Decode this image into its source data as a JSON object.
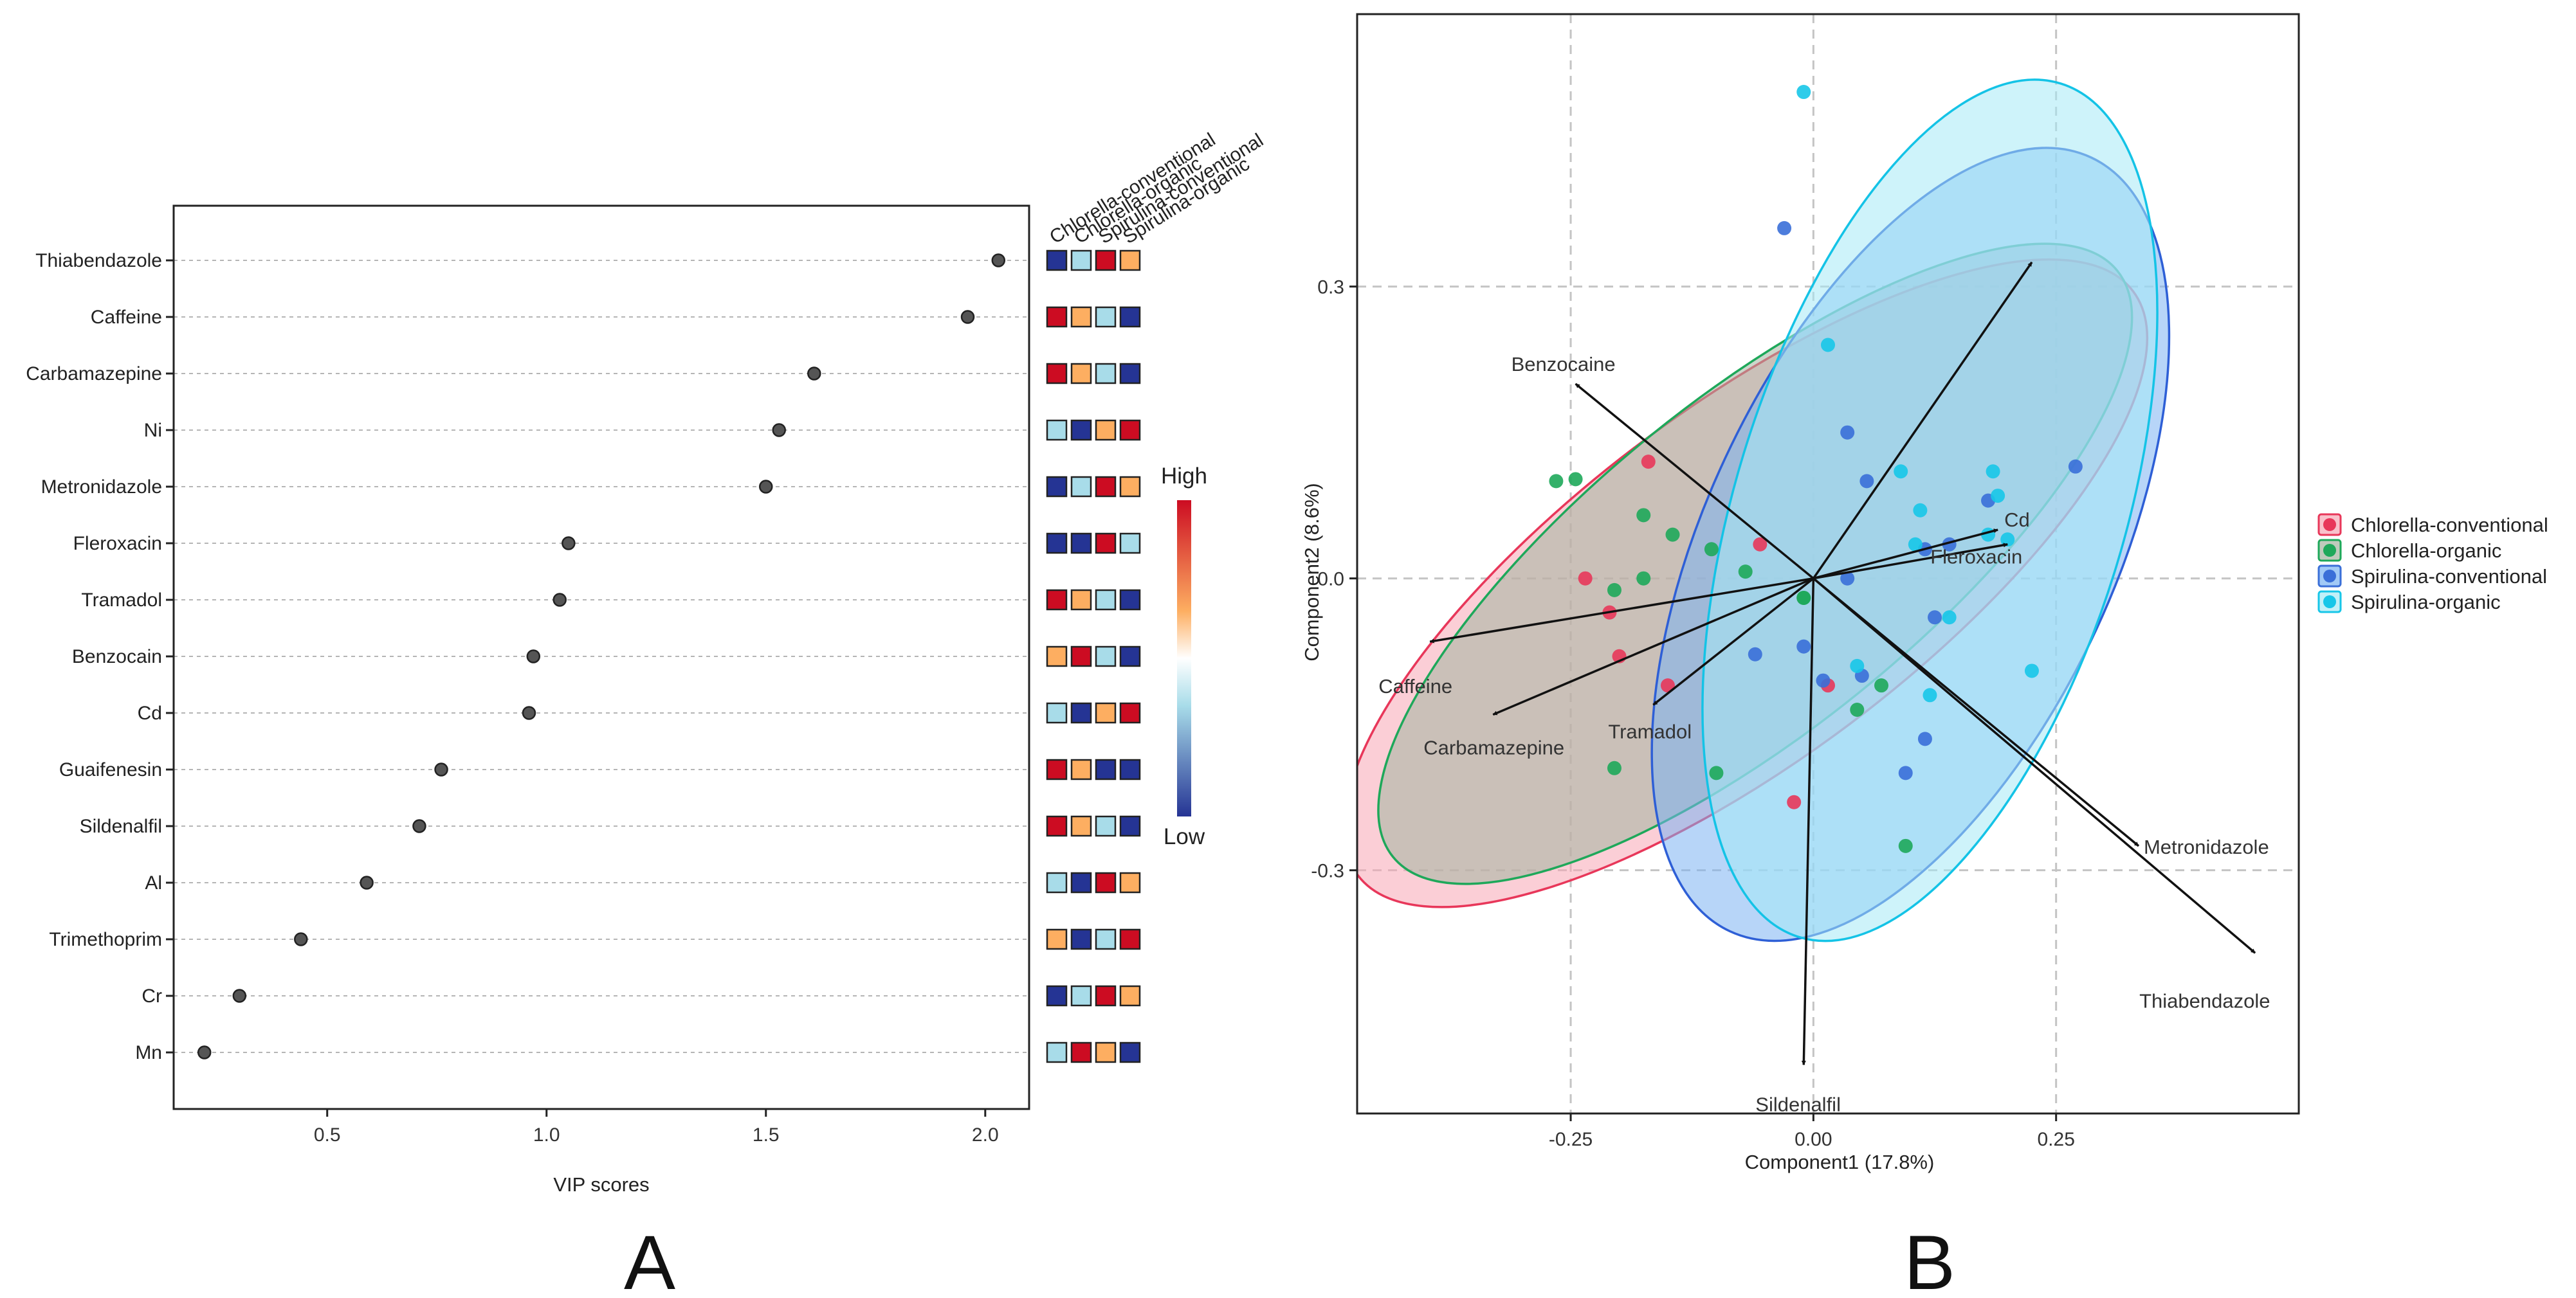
{
  "figure": {
    "panel_a_letter": "A",
    "panel_b_letter": "B"
  },
  "heat_colors": {
    "high": "#cc0c22",
    "mid_high": "#fdae61",
    "mid_low": "#a8dce9",
    "low": "#253494"
  },
  "chart_data": [
    {
      "type": "scatter",
      "panel": "A",
      "title": "",
      "xlabel": "VIP scores",
      "ylabel": "",
      "xlim": [
        0.15,
        2.1
      ],
      "xticks": [
        0.5,
        1.0,
        1.5,
        2.0
      ],
      "xtick_labels": [
        "0.5",
        "1.0",
        "1.5",
        "2.0"
      ],
      "grid": "horizontal dotted",
      "categories": [
        "Thiabendazole",
        "Caffeine",
        "Carbamazepine",
        "Ni",
        "Metronidazole",
        "Fleroxacin",
        "Tramadol",
        "Benzocain",
        "Cd",
        "Guaifenesin",
        "Sildenalfil",
        "Al",
        "Trimethoprim",
        "Cr",
        "Mn"
      ],
      "values": [
        2.03,
        1.96,
        1.61,
        1.53,
        1.5,
        1.05,
        1.03,
        0.97,
        0.96,
        0.76,
        0.71,
        0.59,
        0.44,
        0.3,
        0.22
      ],
      "heatmap": {
        "groups": [
          "Chlorella-conventional",
          "Chlorella-organic",
          "Spirulina-conventional",
          "Spirulina-organic"
        ],
        "levels": [
          [
            "low",
            "mid_low",
            "high",
            "mid_high"
          ],
          [
            "high",
            "mid_high",
            "mid_low",
            "low"
          ],
          [
            "high",
            "mid_high",
            "mid_low",
            "low"
          ],
          [
            "mid_low",
            "low",
            "mid_high",
            "high"
          ],
          [
            "low",
            "mid_low",
            "high",
            "mid_high"
          ],
          [
            "low",
            "low",
            "high",
            "mid_low"
          ],
          [
            "high",
            "mid_high",
            "mid_low",
            "low"
          ],
          [
            "mid_high",
            "high",
            "mid_low",
            "low"
          ],
          [
            "mid_low",
            "low",
            "mid_high",
            "high"
          ],
          [
            "high",
            "mid_high",
            "low",
            "low"
          ],
          [
            "high",
            "mid_high",
            "mid_low",
            "low"
          ],
          [
            "mid_low",
            "low",
            "high",
            "mid_high"
          ],
          [
            "mid_high",
            "low",
            "mid_low",
            "high"
          ],
          [
            "low",
            "mid_low",
            "high",
            "mid_high"
          ],
          [
            "mid_low",
            "high",
            "mid_high",
            "low"
          ]
        ],
        "scale_high_label": "High",
        "scale_low_label": "Low"
      }
    },
    {
      "type": "scatter",
      "panel": "B",
      "title": "",
      "xlabel": "Component1 (17.8%)",
      "ylabel": "Component2 (8.6%)",
      "xlim": [
        -0.47,
        0.5
      ],
      "ylim": [
        -0.55,
        0.58
      ],
      "xticks": [
        -0.25,
        0.0,
        0.25
      ],
      "xtick_labels": [
        "-0.25",
        "0.00",
        "0.25"
      ],
      "yticks": [
        -0.3,
        0.0,
        0.3
      ],
      "ytick_labels": [
        "-0.3",
        "0.0",
        "0.3"
      ],
      "grid": "dashed",
      "legend_position": "right",
      "series": [
        {
          "name": "Chlorella-conventional",
          "color": "#e8375a",
          "points": [
            [
              -0.17,
              0.12
            ],
            [
              -0.235,
              0.0
            ],
            [
              -0.21,
              -0.035
            ],
            [
              -0.2,
              -0.08
            ],
            [
              -0.15,
              -0.11
            ],
            [
              -0.055,
              0.035
            ],
            [
              0.015,
              -0.11
            ],
            [
              -0.02,
              -0.23
            ]
          ]
        },
        {
          "name": "Chlorella-organic",
          "color": "#1ea85a",
          "points": [
            [
              -0.265,
              0.1
            ],
            [
              -0.245,
              0.102
            ],
            [
              -0.175,
              0.065
            ],
            [
              -0.145,
              0.045
            ],
            [
              -0.175,
              0.0
            ],
            [
              -0.205,
              -0.012
            ],
            [
              -0.105,
              0.03
            ],
            [
              -0.07,
              0.007
            ],
            [
              -0.01,
              -0.02
            ],
            [
              -0.01,
              -0.02
            ],
            [
              0.045,
              -0.135
            ],
            [
              0.07,
              -0.11
            ],
            [
              -0.205,
              -0.195
            ],
            [
              -0.1,
              -0.2
            ],
            [
              0.095,
              -0.275
            ]
          ]
        },
        {
          "name": "Spirulina-conventional",
          "color": "#3a6fd8",
          "points": [
            [
              -0.03,
              0.36
            ],
            [
              0.035,
              0.15
            ],
            [
              0.055,
              0.1
            ],
            [
              0.18,
              0.08
            ],
            [
              0.27,
              0.115
            ],
            [
              0.14,
              0.035
            ],
            [
              0.115,
              0.03
            ],
            [
              0.035,
              0.0
            ],
            [
              -0.01,
              -0.07
            ],
            [
              -0.06,
              -0.078
            ],
            [
              0.01,
              -0.105
            ],
            [
              0.05,
              -0.1
            ],
            [
              0.125,
              -0.04
            ],
            [
              0.115,
              -0.165
            ],
            [
              0.095,
              -0.2
            ]
          ]
        },
        {
          "name": "Spirulina-organic",
          "color": "#17c6e8",
          "points": [
            [
              -0.01,
              0.5
            ],
            [
              0.015,
              0.24
            ],
            [
              0.09,
              0.11
            ],
            [
              0.185,
              0.11
            ],
            [
              0.19,
              0.085
            ],
            [
              0.11,
              0.07
            ],
            [
              0.18,
              0.045
            ],
            [
              0.2,
              0.04
            ],
            [
              0.105,
              0.035
            ],
            [
              0.14,
              -0.04
            ],
            [
              0.045,
              -0.09
            ],
            [
              0.12,
              -0.12
            ],
            [
              0.225,
              -0.095
            ]
          ]
        }
      ],
      "loadings": [
        {
          "label": "Benzocaine",
          "x": -0.245,
          "y": 0.2
        },
        {
          "label": "Caffeine",
          "x": -0.395,
          "y": -0.065
        },
        {
          "label": "Carbamazepine",
          "x": -0.33,
          "y": -0.14
        },
        {
          "label": "Tramadol",
          "x": -0.165,
          "y": -0.13
        },
        {
          "label": "Cd",
          "x": 0.19,
          "y": 0.05
        },
        {
          "label": "Fleroxacin",
          "x": 0.2,
          "y": 0.035
        },
        {
          "label": "Metronidazole",
          "x": 0.335,
          "y": -0.275
        },
        {
          "label": "Thiabendazole",
          "x": 0.455,
          "y": -0.385
        },
        {
          "label": "Sildenalfil",
          "x": -0.01,
          "y": -0.5
        },
        {
          "label": "",
          "x": 0.225,
          "y": 0.325
        }
      ],
      "ellipses": [
        {
          "name": "Chlorella-conventional",
          "color": "#e8375a",
          "fill": "#f7a6b5",
          "cx": -0.07,
          "cy": -0.005,
          "rx": 0.5,
          "ry": 0.18,
          "angle_deg": -37
        },
        {
          "name": "Chlorella-organic",
          "color": "#1ea85a",
          "fill": "#a3b4a0",
          "cx": -0.06,
          "cy": 0.015,
          "rx": 0.48,
          "ry": 0.17,
          "angle_deg": -39
        },
        {
          "name": "Spirulina-conventional",
          "color": "#2e5fd6",
          "fill": "#7bb3f2",
          "cx": 0.1,
          "cy": 0.035,
          "rx": 0.44,
          "ry": 0.21,
          "angle_deg": -65
        },
        {
          "name": "Spirulina-organic",
          "color": "#14c3e6",
          "fill": "#a6eaf5",
          "cx": 0.12,
          "cy": 0.07,
          "rx": 0.46,
          "ry": 0.2,
          "angle_deg": -73
        }
      ]
    }
  ]
}
